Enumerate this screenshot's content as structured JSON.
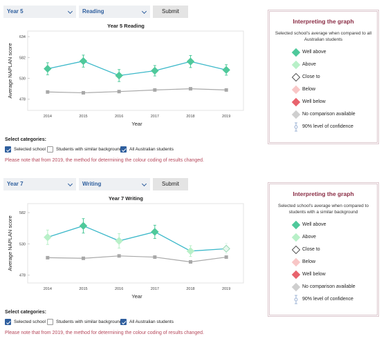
{
  "panels": [
    {
      "selects": [
        "Year 5",
        "Reading"
      ],
      "submit": "Submit",
      "categories_label": "Select categories:",
      "checkboxes": [
        {
          "label": "Selected school",
          "checked": true
        },
        {
          "label": "Students with similar background",
          "checked": false
        },
        {
          "label": "All Australian students",
          "checked": true
        }
      ],
      "note": "Please note that from 2019, the method for determining the colour coding of results changed.",
      "legend": {
        "title": "Interpreting the graph",
        "subtitle": "Selected school's average when compared to all Australian students",
        "items": [
          {
            "label": "Well above",
            "color": "#4fc99b"
          },
          {
            "label": "Above",
            "color": "#b8f0c8"
          },
          {
            "label": "Close to",
            "color": "#ffffff"
          },
          {
            "label": "Below",
            "color": "#f8c6c6"
          },
          {
            "label": "Well below",
            "color": "#e8636d"
          },
          {
            "label": "No comparison available",
            "color": "#cfcfcf"
          },
          {
            "label": "90% level of confidence",
            "color": "#9fb4d6"
          }
        ]
      }
    },
    {
      "selects": [
        "Year 7",
        "Writing"
      ],
      "submit": "Submit",
      "categories_label": "Select categories:",
      "checkboxes": [
        {
          "label": "Selected school",
          "checked": true
        },
        {
          "label": "Students with similar background",
          "checked": false
        },
        {
          "label": "All Australian students",
          "checked": true
        }
      ],
      "note": "Please note that from 2019, the method for determining the colour coding of results changed.",
      "legend": {
        "title": "Interpreting the graph",
        "subtitle": "Selected school's average when compared to students with a similar background",
        "items": [
          {
            "label": "Well above",
            "color": "#4fc99b"
          },
          {
            "label": "Above",
            "color": "#b8f0c8"
          },
          {
            "label": "Close to",
            "color": "#ffffff"
          },
          {
            "label": "Below",
            "color": "#f8c6c6"
          },
          {
            "label": "Well below",
            "color": "#e8636d"
          },
          {
            "label": "No comparison available",
            "color": "#cfcfcf"
          },
          {
            "label": "90% level of confidence",
            "color": "#9fb4d6"
          }
        ]
      }
    }
  ],
  "chart_data": [
    {
      "type": "line",
      "title": "Year 5 Reading",
      "x_label": "Year",
      "y_label": "Average NAPLAN score",
      "categories": [
        "2014",
        "2015",
        "2016",
        "2017",
        "2018",
        "2019"
      ],
      "ylim": [
        450,
        648
      ],
      "yticks": [
        478,
        530,
        582,
        634
      ],
      "series": [
        {
          "color": "#3bb8c9",
          "values": [
            554,
            573,
            537,
            549,
            572,
            551
          ],
          "errors": [
            15,
            15,
            15,
            13,
            15,
            13
          ],
          "point_colors": [
            "#4fc99b",
            "#4fc99b",
            "#4fc99b",
            "#4fc99b",
            "#4fc99b",
            "#4fc99b"
          ]
        },
        {
          "color": "#a8a8a8",
          "values": [
            496,
            494,
            497,
            501,
            504,
            501
          ]
        }
      ]
    },
    {
      "type": "line",
      "title": "Year 7 Writing",
      "x_label": "Year",
      "y_label": "Average NAPLAN score",
      "categories": [
        "2014",
        "2015",
        "2016",
        "2017",
        "2018",
        "2019"
      ],
      "ylim": [
        465,
        597
      ],
      "yticks": [
        478,
        530,
        582
      ],
      "series": [
        {
          "color": "#3bb8c9",
          "values": [
            541,
            560,
            535,
            550,
            518,
            522
          ],
          "errors": [
            12,
            12,
            12,
            11,
            9,
            9
          ],
          "point_colors": [
            "#b8f0c8",
            "#4fc99b",
            "#b8f0c8",
            "#4fc99b",
            "#b8f0c8",
            "#e6f7ee"
          ]
        },
        {
          "color": "#a8a8a8",
          "values": [
            507,
            506,
            510,
            508,
            500,
            508
          ]
        }
      ]
    }
  ]
}
